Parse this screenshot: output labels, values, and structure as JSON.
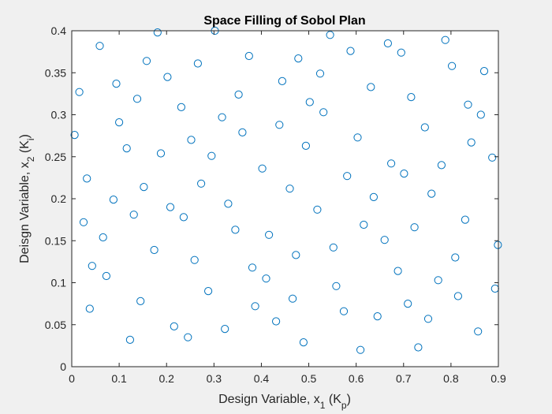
{
  "chart_data": {
    "type": "scatter",
    "title": "Space Filling of Sobol Plan",
    "xlabel": {
      "prefix": "Design Variable, x",
      "sub": "1",
      "mid": " (K",
      "sub2": "p",
      "suffix": ")"
    },
    "ylabel": {
      "prefix": "Deisgn Variable, x",
      "sub": "2",
      "mid": " (K",
      "sub2": "i",
      "suffix": ")"
    },
    "xlim": [
      0,
      0.9
    ],
    "ylim": [
      0,
      0.4
    ],
    "xticks": [
      0,
      0.1,
      0.2,
      0.3,
      0.4,
      0.5,
      0.6,
      0.7,
      0.8,
      0.9
    ],
    "xtick_labels": [
      "0",
      "0.1",
      "0.2",
      "0.3",
      "0.4",
      "0.5",
      "0.6",
      "0.7",
      "0.8",
      "0.9"
    ],
    "yticks": [
      0,
      0.05,
      0.1,
      0.15,
      0.2,
      0.25,
      0.3,
      0.35,
      0.4
    ],
    "ytick_labels": [
      "0",
      "0.05",
      "0.1",
      "0.15",
      "0.2",
      "0.25",
      "0.3",
      "0.35",
      "0.4"
    ],
    "grid": false,
    "marker": "open-circle",
    "colors": {
      "marker": "#0072bd",
      "axes_bg": "#ffffff",
      "figure_bg": "#f0f0f0",
      "axis": "#262626"
    },
    "points": [
      [
        0.006,
        0.276
      ],
      [
        0.016,
        0.327
      ],
      [
        0.025,
        0.172
      ],
      [
        0.032,
        0.224
      ],
      [
        0.038,
        0.069
      ],
      [
        0.043,
        0.12
      ],
      [
        0.059,
        0.382
      ],
      [
        0.066,
        0.154
      ],
      [
        0.073,
        0.108
      ],
      [
        0.088,
        0.199
      ],
      [
        0.094,
        0.337
      ],
      [
        0.1,
        0.291
      ],
      [
        0.116,
        0.26
      ],
      [
        0.123,
        0.032
      ],
      [
        0.131,
        0.181
      ],
      [
        0.138,
        0.319
      ],
      [
        0.145,
        0.078
      ],
      [
        0.152,
        0.214
      ],
      [
        0.158,
        0.364
      ],
      [
        0.174,
        0.139
      ],
      [
        0.181,
        0.398
      ],
      [
        0.188,
        0.254
      ],
      [
        0.202,
        0.345
      ],
      [
        0.208,
        0.19
      ],
      [
        0.216,
        0.048
      ],
      [
        0.231,
        0.309
      ],
      [
        0.236,
        0.178
      ],
      [
        0.245,
        0.035
      ],
      [
        0.252,
        0.27
      ],
      [
        0.259,
        0.127
      ],
      [
        0.266,
        0.361
      ],
      [
        0.273,
        0.218
      ],
      [
        0.288,
        0.09
      ],
      [
        0.295,
        0.251
      ],
      [
        0.302,
        0.4
      ],
      [
        0.317,
        0.297
      ],
      [
        0.323,
        0.045
      ],
      [
        0.33,
        0.194
      ],
      [
        0.345,
        0.163
      ],
      [
        0.352,
        0.324
      ],
      [
        0.36,
        0.279
      ],
      [
        0.374,
        0.37
      ],
      [
        0.381,
        0.118
      ],
      [
        0.387,
        0.072
      ],
      [
        0.402,
        0.236
      ],
      [
        0.41,
        0.105
      ],
      [
        0.416,
        0.157
      ],
      [
        0.431,
        0.054
      ],
      [
        0.438,
        0.288
      ],
      [
        0.444,
        0.34
      ],
      [
        0.46,
        0.212
      ],
      [
        0.466,
        0.081
      ],
      [
        0.473,
        0.133
      ],
      [
        0.478,
        0.367
      ],
      [
        0.489,
        0.029
      ],
      [
        0.494,
        0.263
      ],
      [
        0.502,
        0.315
      ],
      [
        0.518,
        0.187
      ],
      [
        0.524,
        0.349
      ],
      [
        0.531,
        0.303
      ],
      [
        0.545,
        0.395
      ],
      [
        0.552,
        0.142
      ],
      [
        0.558,
        0.096
      ],
      [
        0.574,
        0.066
      ],
      [
        0.581,
        0.227
      ],
      [
        0.588,
        0.376
      ],
      [
        0.603,
        0.273
      ],
      [
        0.609,
        0.02
      ],
      [
        0.616,
        0.169
      ],
      [
        0.631,
        0.333
      ],
      [
        0.637,
        0.202
      ],
      [
        0.645,
        0.06
      ],
      [
        0.66,
        0.151
      ],
      [
        0.667,
        0.385
      ],
      [
        0.674,
        0.242
      ],
      [
        0.688,
        0.114
      ],
      [
        0.695,
        0.374
      ],
      [
        0.701,
        0.23
      ],
      [
        0.709,
        0.075
      ],
      [
        0.716,
        0.321
      ],
      [
        0.723,
        0.166
      ],
      [
        0.731,
        0.023
      ],
      [
        0.745,
        0.285
      ],
      [
        0.752,
        0.057
      ],
      [
        0.759,
        0.206
      ],
      [
        0.773,
        0.103
      ],
      [
        0.78,
        0.24
      ],
      [
        0.788,
        0.389
      ],
      [
        0.802,
        0.358
      ],
      [
        0.809,
        0.13
      ],
      [
        0.815,
        0.084
      ],
      [
        0.83,
        0.175
      ],
      [
        0.836,
        0.312
      ],
      [
        0.843,
        0.267
      ],
      [
        0.857,
        0.042
      ],
      [
        0.863,
        0.3
      ],
      [
        0.87,
        0.352
      ],
      [
        0.887,
        0.249
      ],
      [
        0.893,
        0.093
      ],
      [
        0.899,
        0.145
      ]
    ]
  }
}
